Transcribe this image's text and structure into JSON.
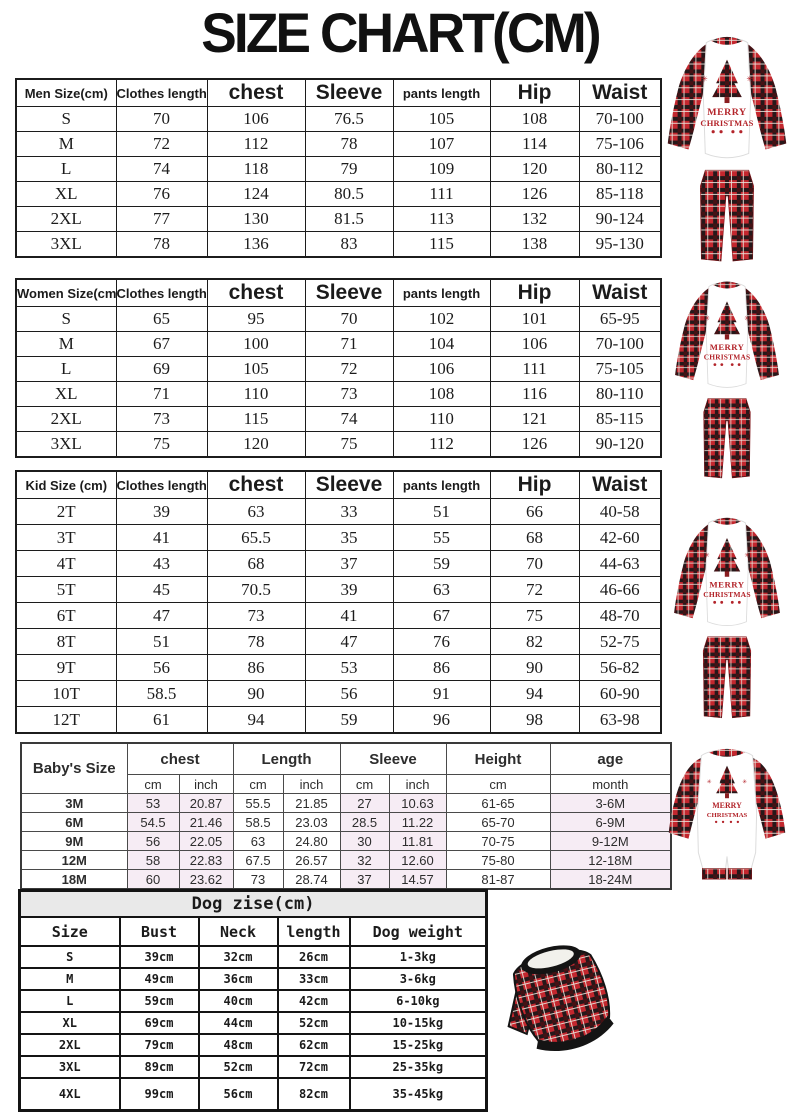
{
  "title": "SIZE CHART(CM)",
  "images": {
    "print_line1": "MERRY",
    "print_line2": "CHRISTMAS",
    "plaid_red": "#c3272e",
    "plaid_dark": "#26181a",
    "print_red": "#b3242a"
  },
  "tables": {
    "men": {
      "headers": [
        "Men Size(cm)",
        "Clothes length",
        "chest",
        "Sleeve",
        "pants length",
        "Hip",
        "Waist"
      ],
      "rows": [
        [
          "S",
          "70",
          "106",
          "76.5",
          "105",
          "108",
          "70-100"
        ],
        [
          "M",
          "72",
          "112",
          "78",
          "107",
          "114",
          "75-106"
        ],
        [
          "L",
          "74",
          "118",
          "79",
          "109",
          "120",
          "80-112"
        ],
        [
          "XL",
          "76",
          "124",
          "80.5",
          "111",
          "126",
          "85-118"
        ],
        [
          "2XL",
          "77",
          "130",
          "81.5",
          "113",
          "132",
          "90-124"
        ],
        [
          "3XL",
          "78",
          "136",
          "83",
          "115",
          "138",
          "95-130"
        ]
      ]
    },
    "women": {
      "headers": [
        "Women Size(cm)",
        "Clothes length",
        "chest",
        "Sleeve",
        "pants length",
        "Hip",
        "Waist"
      ],
      "rows": [
        [
          "S",
          "65",
          "95",
          "70",
          "102",
          "101",
          "65-95"
        ],
        [
          "M",
          "67",
          "100",
          "71",
          "104",
          "106",
          "70-100"
        ],
        [
          "L",
          "69",
          "105",
          "72",
          "106",
          "111",
          "75-105"
        ],
        [
          "XL",
          "71",
          "110",
          "73",
          "108",
          "116",
          "80-110"
        ],
        [
          "2XL",
          "73",
          "115",
          "74",
          "110",
          "121",
          "85-115"
        ],
        [
          "3XL",
          "75",
          "120",
          "75",
          "112",
          "126",
          "90-120"
        ]
      ]
    },
    "kid": {
      "headers": [
        "Kid Size (cm)",
        "Clothes length",
        "chest",
        "Sleeve",
        "pants length",
        "Hip",
        "Waist"
      ],
      "rows": [
        [
          "2T",
          "39",
          "63",
          "33",
          "51",
          "66",
          "40-58"
        ],
        [
          "3T",
          "41",
          "65.5",
          "35",
          "55",
          "68",
          "42-60"
        ],
        [
          "4T",
          "43",
          "68",
          "37",
          "59",
          "70",
          "44-63"
        ],
        [
          "5T",
          "45",
          "70.5",
          "39",
          "63",
          "72",
          "46-66"
        ],
        [
          "6T",
          "47",
          "73",
          "41",
          "67",
          "75",
          "48-70"
        ],
        [
          "8T",
          "51",
          "78",
          "47",
          "76",
          "82",
          "52-75"
        ],
        [
          "9T",
          "56",
          "86",
          "53",
          "86",
          "90",
          "56-82"
        ],
        [
          "10T",
          "58.5",
          "90",
          "56",
          "91",
          "94",
          "60-90"
        ],
        [
          "12T",
          "61",
          "94",
          "59",
          "96",
          "98",
          "63-98"
        ]
      ]
    },
    "baby": {
      "group_headers": [
        "Baby's Size",
        "chest",
        "Length",
        "Sleeve",
        "Height",
        "age"
      ],
      "sub_headers": [
        "cm",
        "inch",
        "cm",
        "inch",
        "cm",
        "inch",
        "cm",
        "month"
      ],
      "highlight_color": "#f6ecf4",
      "rows": [
        [
          "3M",
          "53",
          "20.87",
          "55.5",
          "21.85",
          "27",
          "10.63",
          "61-65",
          "3-6M"
        ],
        [
          "6M",
          "54.5",
          "21.46",
          "58.5",
          "23.03",
          "28.5",
          "11.22",
          "65-70",
          "6-9M"
        ],
        [
          "9M",
          "56",
          "22.05",
          "63",
          "24.80",
          "30",
          "11.81",
          "70-75",
          "9-12M"
        ],
        [
          "12M",
          "58",
          "22.83",
          "67.5",
          "26.57",
          "32",
          "12.60",
          "75-80",
          "12-18M"
        ],
        [
          "18M",
          "60",
          "23.62",
          "73",
          "28.74",
          "37",
          "14.57",
          "81-87",
          "18-24M"
        ]
      ]
    },
    "dog": {
      "title": "Dog zise(cm)",
      "headers": [
        "Size",
        "Bust",
        "Neck",
        "length",
        "Dog weight"
      ],
      "rows": [
        [
          "S",
          "39cm",
          "32cm",
          "26cm",
          "1-3kg"
        ],
        [
          "M",
          "49cm",
          "36cm",
          "33cm",
          "3-6kg"
        ],
        [
          "L",
          "59cm",
          "40cm",
          "42cm",
          "6-10kg"
        ],
        [
          "XL",
          "69cm",
          "44cm",
          "52cm",
          "10-15kg"
        ],
        [
          "2XL",
          "79cm",
          "48cm",
          "62cm",
          "15-25kg"
        ],
        [
          "3XL",
          "89cm",
          "52cm",
          "72cm",
          "25-35kg"
        ],
        [
          "4XL",
          "99cm",
          "56cm",
          "82cm",
          "35-45kg"
        ]
      ]
    }
  }
}
